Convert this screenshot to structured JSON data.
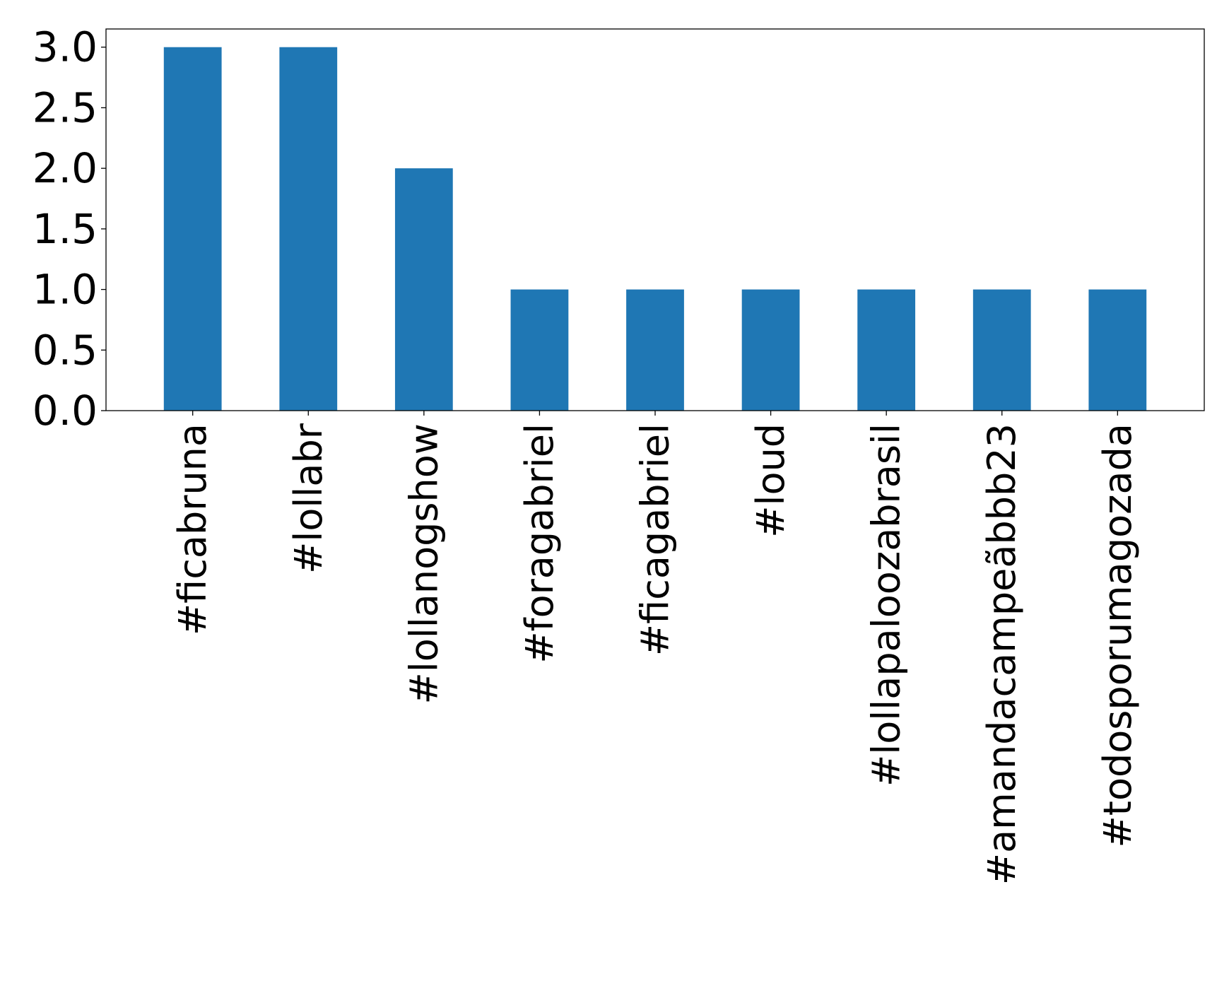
{
  "chart_data": {
    "type": "bar",
    "title": "",
    "xlabel": "",
    "ylabel": "",
    "categories": [
      "#ficabruna",
      "#lollabr",
      "#lollanogshow",
      "#foragabriel",
      "#ficagabriel",
      "#loud",
      "#lollapaloozabrasil",
      "#amandacampeãbbb23",
      "#todosporumagozada"
    ],
    "values": [
      3,
      3,
      2,
      1,
      1,
      1,
      1,
      1,
      1
    ],
    "ylim": [
      0,
      3.15
    ],
    "yticks": [
      0.0,
      0.5,
      1.0,
      1.5,
      2.0,
      2.5,
      3.0
    ],
    "ytick_labels": [
      "0.0",
      "0.5",
      "1.0",
      "1.5",
      "2.0",
      "2.5",
      "3.0"
    ],
    "grid": false,
    "legend": "none",
    "bar_color": "#1f77b4"
  }
}
